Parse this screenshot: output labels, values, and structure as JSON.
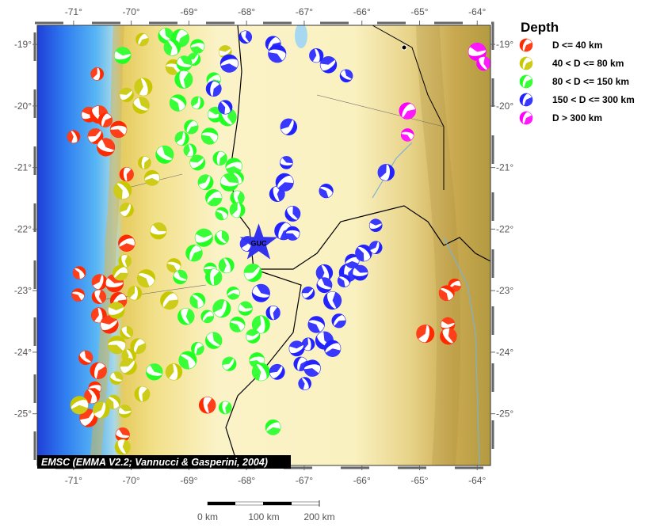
{
  "map": {
    "lon_range": [
      -71.63,
      -63.77
    ],
    "lat_range": [
      -25.84,
      -18.69
    ],
    "lon_ticks": [
      -71,
      -70,
      -69,
      -68,
      -67,
      -66,
      -65,
      -64
    ],
    "lat_ticks": [
      -19,
      -20,
      -21,
      -22,
      -23,
      -24,
      -25
    ],
    "degree_symbol": "°"
  },
  "legend": {
    "title": "Depth",
    "items": [
      {
        "label": "D <= 40 km",
        "color": "#ff2a00"
      },
      {
        "label": "40 < D <= 80 km",
        "color": "#c8c800"
      },
      {
        "label": "80 < D <= 150 km",
        "color": "#22ff22"
      },
      {
        "label": "150 < D <= 300 km",
        "color": "#2222ff"
      },
      {
        "label": "D > 300 km",
        "color": "#ff00ff"
      }
    ]
  },
  "caption": "EMSC (EMMA V2.2; Vannucci & Gasperini, 2004)",
  "station": {
    "code": "GUC",
    "lon": -67.79,
    "lat": -22.23,
    "color": "#3333ee"
  },
  "scale_bar": {
    "labels": [
      "0 km",
      "100 km",
      "200 km"
    ]
  },
  "events": [
    [
      -70.59,
      -19.48,
      0
    ],
    [
      -70.73,
      -20.14,
      0
    ],
    [
      -70.56,
      -20.14,
      0
    ],
    [
      -70.45,
      -20.23,
      0
    ],
    [
      -70.22,
      -20.38,
      0
    ],
    [
      -71.0,
      -20.5,
      0
    ],
    [
      -70.62,
      -20.49,
      0
    ],
    [
      -70.44,
      -20.67,
      0
    ],
    [
      -70.08,
      -21.11,
      0
    ],
    [
      -70.08,
      -22.23,
      0
    ],
    [
      -70.9,
      -22.71,
      0
    ],
    [
      -70.55,
      -22.86,
      0
    ],
    [
      -70.29,
      -22.88,
      0
    ],
    [
      -70.56,
      -23.1,
      0
    ],
    [
      -70.22,
      -23.16,
      0
    ],
    [
      -70.92,
      -23.07,
      0
    ],
    [
      -70.56,
      -23.4,
      0
    ],
    [
      -70.38,
      -23.55,
      0
    ],
    [
      -70.79,
      -24.09,
      0
    ],
    [
      -70.57,
      -24.3,
      0
    ],
    [
      -70.63,
      -24.58,
      0
    ],
    [
      -70.68,
      -24.71,
      0
    ],
    [
      -70.74,
      -25.07,
      0
    ],
    [
      -70.15,
      -25.34,
      0
    ],
    [
      -68.68,
      -24.86,
      0
    ],
    [
      -64.39,
      -22.91,
      0
    ],
    [
      -64.53,
      -23.04,
      0
    ],
    [
      -64.9,
      -23.7,
      0
    ],
    [
      -64.51,
      -23.55,
      0
    ],
    [
      -64.5,
      -23.74,
      0
    ],
    [
      -69.81,
      -18.92,
      1
    ],
    [
      -69.27,
      -19.37,
      1
    ],
    [
      -69.79,
      -19.69,
      1
    ],
    [
      -70.08,
      -19.82,
      1
    ],
    [
      -69.83,
      -19.99,
      1
    ],
    [
      -69.77,
      -20.92,
      1
    ],
    [
      -69.64,
      -21.17,
      1
    ],
    [
      -70.15,
      -21.37,
      1
    ],
    [
      -70.08,
      -21.69,
      1
    ],
    [
      -69.53,
      -22.03,
      1
    ],
    [
      -70.11,
      -22.52,
      1
    ],
    [
      -70.19,
      -22.71,
      1
    ],
    [
      -69.74,
      -22.8,
      1
    ],
    [
      -69.94,
      -23.04,
      1
    ],
    [
      -70.26,
      -23.32,
      1
    ],
    [
      -70.08,
      -23.68,
      1
    ],
    [
      -69.88,
      -23.9,
      1
    ],
    [
      -70.25,
      -23.88,
      1
    ],
    [
      -70.04,
      -24.06,
      1
    ],
    [
      -70.05,
      -24.23,
      1
    ],
    [
      -70.26,
      -24.42,
      1
    ],
    [
      -69.81,
      -24.68,
      1
    ],
    [
      -70.9,
      -24.86,
      1
    ],
    [
      -70.31,
      -24.81,
      1
    ],
    [
      -70.52,
      -24.94,
      1
    ],
    [
      -70.11,
      -24.96,
      1
    ],
    [
      -70.15,
      -25.54,
      1
    ],
    [
      -69.34,
      -23.16,
      1
    ],
    [
      -69.26,
      -22.59,
      1
    ],
    [
      -69.26,
      -24.32,
      1
    ],
    [
      -68.37,
      -19.12,
      1
    ],
    [
      -69.4,
      -18.86,
      2
    ],
    [
      -69.15,
      -18.9,
      2
    ],
    [
      -68.85,
      -19.03,
      2
    ],
    [
      -69.29,
      -19.05,
      2
    ],
    [
      -68.91,
      -19.24,
      2
    ],
    [
      -69.08,
      -19.31,
      2
    ],
    [
      -69.09,
      -19.57,
      2
    ],
    [
      -68.57,
      -19.57,
      2
    ],
    [
      -69.19,
      -19.95,
      2
    ],
    [
      -68.85,
      -19.95,
      2
    ],
    [
      -68.54,
      -20.14,
      2
    ],
    [
      -68.33,
      -20.18,
      2
    ],
    [
      -68.96,
      -20.34,
      2
    ],
    [
      -68.64,
      -20.49,
      2
    ],
    [
      -68.98,
      -20.72,
      2
    ],
    [
      -68.85,
      -20.92,
      2
    ],
    [
      -69.42,
      -20.79,
      2
    ],
    [
      -68.46,
      -20.85,
      2
    ],
    [
      -68.22,
      -20.98,
      2
    ],
    [
      -68.16,
      -21.17,
      2
    ],
    [
      -68.71,
      -21.24,
      2
    ],
    [
      -68.3,
      -21.24,
      2
    ],
    [
      -68.16,
      -21.49,
      2
    ],
    [
      -68.57,
      -21.49,
      2
    ],
    [
      -68.43,
      -21.75,
      2
    ],
    [
      -68.16,
      -21.69,
      2
    ],
    [
      -68.74,
      -22.14,
      2
    ],
    [
      -68.43,
      -22.14,
      2
    ],
    [
      -68.91,
      -22.39,
      2
    ],
    [
      -68.63,
      -22.65,
      2
    ],
    [
      -68.35,
      -22.59,
      2
    ],
    [
      -67.89,
      -22.71,
      2
    ],
    [
      -69.15,
      -22.78,
      2
    ],
    [
      -68.57,
      -22.78,
      2
    ],
    [
      -68.23,
      -23.04,
      2
    ],
    [
      -68.85,
      -23.16,
      2
    ],
    [
      -68.43,
      -23.29,
      2
    ],
    [
      -68.02,
      -23.29,
      2
    ],
    [
      -69.05,
      -23.42,
      2
    ],
    [
      -68.68,
      -23.42,
      2
    ],
    [
      -68.16,
      -23.55,
      2
    ],
    [
      -67.75,
      -23.55,
      2
    ],
    [
      -67.89,
      -23.74,
      2
    ],
    [
      -68.57,
      -23.81,
      2
    ],
    [
      -68.85,
      -23.94,
      2
    ],
    [
      -67.82,
      -24.13,
      2
    ],
    [
      -67.75,
      -24.32,
      2
    ],
    [
      -68.3,
      -24.19,
      2
    ],
    [
      -69.6,
      -24.32,
      2
    ],
    [
      -68.37,
      -24.9,
      2
    ],
    [
      -67.54,
      -25.22,
      2
    ],
    [
      -69.02,
      -24.13,
      2
    ],
    [
      -69.12,
      -20.53,
      2
    ],
    [
      -70.15,
      -19.18,
      2
    ],
    [
      -68.02,
      -18.88,
      3
    ],
    [
      -67.54,
      -18.99,
      3
    ],
    [
      -67.47,
      -19.15,
      3
    ],
    [
      -66.79,
      -19.18,
      3
    ],
    [
      -66.58,
      -19.33,
      3
    ],
    [
      -66.27,
      -19.51,
      3
    ],
    [
      -68.57,
      -19.72,
      3
    ],
    [
      -68.3,
      -19.31,
      3
    ],
    [
      -68.37,
      -20.02,
      3
    ],
    [
      -67.27,
      -20.34,
      3
    ],
    [
      -67.31,
      -20.92,
      3
    ],
    [
      -67.47,
      -21.43,
      3
    ],
    [
      -67.34,
      -21.24,
      3
    ],
    [
      -66.62,
      -21.38,
      3
    ],
    [
      -65.58,
      -21.08,
      3
    ],
    [
      -65.76,
      -21.94,
      3
    ],
    [
      -67.2,
      -21.75,
      3
    ],
    [
      -67.36,
      -22.03,
      3
    ],
    [
      -67.2,
      -22.07,
      3
    ],
    [
      -66.65,
      -22.71,
      3
    ],
    [
      -66.93,
      -23.04,
      3
    ],
    [
      -66.65,
      -22.91,
      3
    ],
    [
      -66.24,
      -22.71,
      3
    ],
    [
      -66.17,
      -22.52,
      3
    ],
    [
      -65.97,
      -22.39,
      3
    ],
    [
      -65.76,
      -22.3,
      3
    ],
    [
      -66.03,
      -22.71,
      3
    ],
    [
      -66.51,
      -23.16,
      3
    ],
    [
      -66.4,
      -23.49,
      3
    ],
    [
      -66.79,
      -23.55,
      3
    ],
    [
      -66.93,
      -23.87,
      3
    ],
    [
      -67.13,
      -23.94,
      3
    ],
    [
      -66.65,
      -23.81,
      3
    ],
    [
      -67.06,
      -24.19,
      3
    ],
    [
      -66.86,
      -24.26,
      3
    ],
    [
      -66.99,
      -24.51,
      3
    ],
    [
      -67.47,
      -24.32,
      3
    ],
    [
      -67.75,
      -23.04,
      3
    ],
    [
      -67.54,
      -23.36,
      3
    ],
    [
      -66.51,
      -23.94,
      3
    ],
    [
      -66.31,
      -22.84,
      3
    ],
    [
      -67.98,
      -22.24,
      3
    ],
    [
      -64.0,
      -19.12,
      4
    ],
    [
      -63.89,
      -19.31,
      4
    ],
    [
      -65.21,
      -20.08,
      4
    ],
    [
      -65.21,
      -20.47,
      4
    ]
  ]
}
